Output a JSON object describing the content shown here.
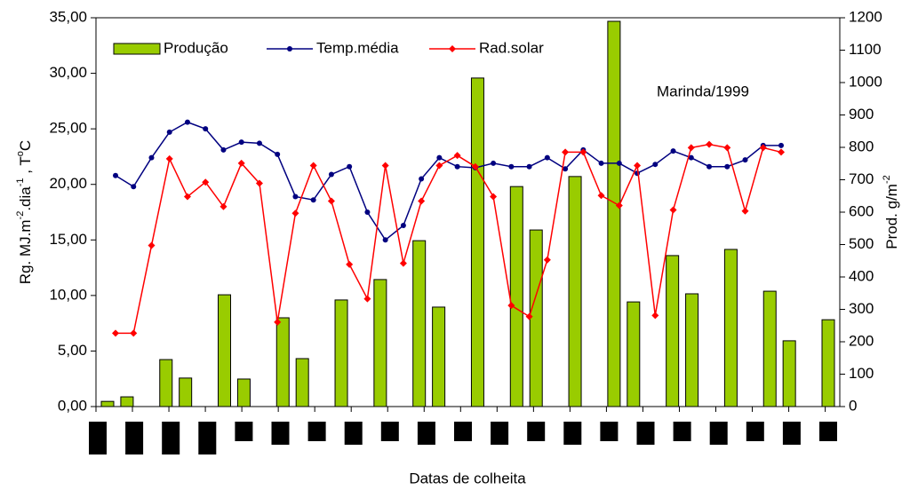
{
  "chart_data": {
    "type": "bar_line",
    "annotation": "Marinda/1999",
    "x_label": "Datas de colheita",
    "y_label": [
      "Rg. MJ.m",
      "-2",
      ".dia",
      "-1",
      " ,  T",
      "o",
      "C"
    ],
    "y2_label": [
      "Prod. g/m",
      "-2"
    ],
    "legend": "top-left",
    "categories": [
      null,
      null,
      null,
      null,
      null,
      null,
      null,
      null,
      null,
      null,
      null,
      null,
      null,
      null,
      null,
      null,
      null,
      null,
      null,
      null,
      null,
      null,
      null,
      null,
      null,
      null,
      null,
      null,
      null,
      null,
      null,
      null,
      null,
      null,
      null,
      null,
      null,
      null
    ],
    "ylim": [
      0,
      35
    ],
    "yticks": [
      {
        "value": 0,
        "label": "0,00"
      },
      {
        "value": 5,
        "label": "5,00"
      },
      {
        "value": 10,
        "label": "10,00"
      },
      {
        "value": 15,
        "label": "15,00"
      },
      {
        "value": 20,
        "label": "20,00"
      },
      {
        "value": 25,
        "label": "25,00"
      },
      {
        "value": 30,
        "label": "30,00"
      },
      {
        "value": 35,
        "label": "35,00"
      }
    ],
    "y2lim": [
      0,
      1200
    ],
    "y2ticks": [
      0,
      100,
      200,
      300,
      400,
      500,
      600,
      700,
      800,
      900,
      1000,
      1100,
      1200
    ],
    "series": [
      {
        "name": "Produção",
        "kind": "bar",
        "axis": "y2",
        "color": "#99cc00",
        "values": [
          16,
          30,
          null,
          145,
          88,
          null,
          345,
          85,
          null,
          274,
          148,
          null,
          329,
          null,
          392,
          null,
          512,
          307,
          null,
          1014,
          null,
          679,
          545,
          null,
          710,
          null,
          1189,
          323,
          null,
          466,
          348,
          null,
          485,
          null,
          356,
          203,
          null,
          268
        ]
      },
      {
        "name": "Temp.média",
        "kind": "line",
        "axis": "y",
        "color": "#000080",
        "values": [
          20.8,
          19.8,
          22.4,
          24.7,
          25.6,
          25.0,
          23.1,
          23.8,
          23.7,
          22.7,
          18.9,
          18.6,
          20.9,
          21.6,
          17.5,
          15.0,
          16.3,
          20.5,
          22.4,
          21.6,
          21.5,
          21.9,
          21.6,
          21.6,
          22.4,
          21.4,
          23.1,
          21.9,
          21.9,
          21.0,
          21.8,
          23.0,
          22.4,
          21.6,
          21.6,
          22.2,
          23.5,
          23.5
        ]
      },
      {
        "name": "Rad.solar",
        "kind": "line",
        "axis": "y",
        "color": "#ff0000",
        "values": [
          6.6,
          6.6,
          14.5,
          22.3,
          18.9,
          20.2,
          18.0,
          21.9,
          20.1,
          7.6,
          17.4,
          21.7,
          18.5,
          12.8,
          9.7,
          21.7,
          12.9,
          18.5,
          21.7,
          22.6,
          21.6,
          18.9,
          9.1,
          8.1,
          13.2,
          22.9,
          22.9,
          19.0,
          18.1,
          21.7,
          8.2,
          17.7,
          23.3,
          23.6,
          23.3,
          17.6,
          23.3,
          22.9
        ]
      }
    ]
  }
}
